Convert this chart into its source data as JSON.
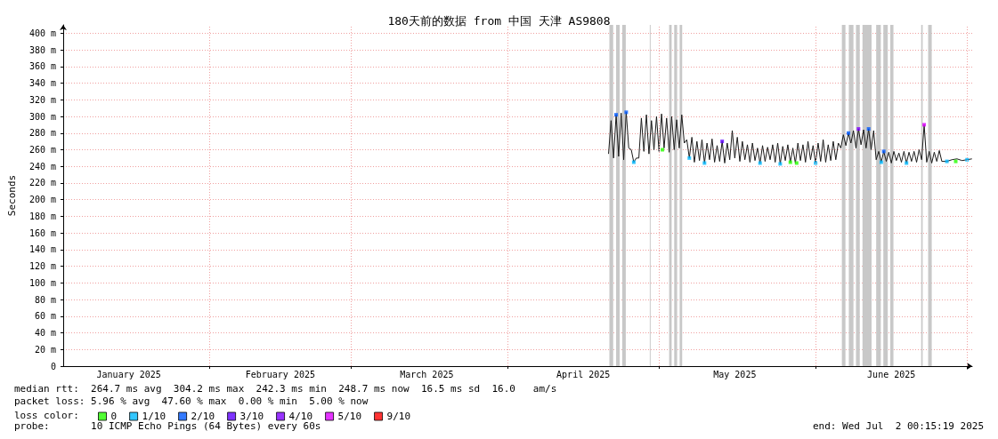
{
  "chart_data": {
    "type": "line",
    "title": "180天前的数据 from 中国 天津 AS9808",
    "ylabel": "Seconds",
    "xlim": [
      "2025-01-03T00:15",
      "2025-07-02T00:15"
    ],
    "xticks": [
      {
        "value": "2025-01-16",
        "label": "January 2025"
      },
      {
        "value": "2025-02-01",
        "label": null
      },
      {
        "value": "2025-02-15",
        "label": "February 2025"
      },
      {
        "value": "2025-03-01",
        "label": null
      },
      {
        "value": "2025-03-16",
        "label": "March 2025"
      },
      {
        "value": "2025-04-01",
        "label": null
      },
      {
        "value": "2025-04-16",
        "label": "April 2025"
      },
      {
        "value": "2025-05-01",
        "label": null
      },
      {
        "value": "2025-05-16",
        "label": "May 2025"
      },
      {
        "value": "2025-06-01",
        "label": null
      },
      {
        "value": "2025-06-16",
        "label": "June 2025"
      },
      {
        "value": "2025-07-01",
        "label": null
      }
    ],
    "ylim": [
      0,
      410
    ],
    "yticks": [
      0,
      {
        "value": 20,
        "label": "20 m"
      },
      {
        "value": 40,
        "label": "40 m"
      },
      {
        "value": 60,
        "label": "60 m"
      },
      {
        "value": 80,
        "label": "80 m"
      },
      {
        "value": 100,
        "label": "100 m"
      },
      {
        "value": 120,
        "label": "120 m"
      },
      {
        "value": 140,
        "label": "140 m"
      },
      {
        "value": 160,
        "label": "160 m"
      },
      {
        "value": 180,
        "label": "180 m"
      },
      {
        "value": 200,
        "label": "200 m"
      },
      {
        "value": 220,
        "label": "220 m"
      },
      {
        "value": 240,
        "label": "240 m"
      },
      {
        "value": 260,
        "label": "260 m"
      },
      {
        "value": 280,
        "label": "280 m"
      },
      {
        "value": 300,
        "label": "300 m"
      },
      {
        "value": 320,
        "label": "320 m"
      },
      {
        "value": 340,
        "label": "340 m"
      },
      {
        "value": 360,
        "label": "360 m"
      },
      {
        "value": 380,
        "label": "380 m"
      },
      {
        "value": 400,
        "label": "400 m"
      }
    ],
    "grid": true,
    "legend": "bottom left",
    "legend_title": "loss color:",
    "marker": "square",
    "series": [
      {
        "color": "#1a1a1a",
        "marker": "none",
        "x": [
          "2025-04-21T00:00",
          "2025-04-21T12:00",
          "2025-04-22T00:00",
          "2025-04-22T12:00",
          "2025-04-23T00:00",
          "2025-04-23T12:00",
          "2025-04-24T00:00",
          "2025-04-24T12:00",
          "2025-04-25T00:00",
          "2025-04-25T12:00",
          "2025-04-26T00:00",
          "2025-04-26T12:00",
          "2025-04-27T00:00",
          "2025-04-27T12:00",
          "2025-04-28T00:00",
          "2025-04-28T12:00",
          "2025-04-29T00:00",
          "2025-04-29T12:00",
          "2025-04-30T00:00",
          "2025-04-30T12:00",
          "2025-05-01T00:00",
          "2025-05-01T12:00",
          "2025-05-02T00:00",
          "2025-05-02T12:00",
          "2025-05-03T00:00",
          "2025-05-03T12:00",
          "2025-05-04T00:00",
          "2025-05-04T12:00",
          "2025-05-05T00:00",
          "2025-05-05T12:00",
          "2025-05-06T00:00",
          "2025-05-06T12:00",
          "2025-05-07T00:00",
          "2025-05-07T12:00",
          "2025-05-08T00:00",
          "2025-05-08T12:00",
          "2025-05-09T00:00",
          "2025-05-09T12:00",
          "2025-05-10T00:00",
          "2025-05-10T12:00",
          "2025-05-11T00:00",
          "2025-05-11T12:00",
          "2025-05-12T00:00",
          "2025-05-12T12:00",
          "2025-05-13T00:00",
          "2025-05-13T12:00",
          "2025-05-14T00:00",
          "2025-05-14T12:00",
          "2025-05-15T00:00",
          "2025-05-15T12:00",
          "2025-05-16T00:00",
          "2025-05-16T12:00",
          "2025-05-17T00:00",
          "2025-05-17T12:00",
          "2025-05-18T00:00",
          "2025-05-18T12:00",
          "2025-05-19T00:00",
          "2025-05-19T12:00",
          "2025-05-20T00:00",
          "2025-05-20T12:00",
          "2025-05-21T00:00",
          "2025-05-21T12:00",
          "2025-05-22T00:00",
          "2025-05-22T12:00",
          "2025-05-23T00:00",
          "2025-05-23T12:00",
          "2025-05-24T00:00",
          "2025-05-24T12:00",
          "2025-05-25T00:00",
          "2025-05-25T12:00",
          "2025-05-26T00:00",
          "2025-05-26T12:00",
          "2025-05-27T00:00",
          "2025-05-27T12:00",
          "2025-05-28T00:00",
          "2025-05-28T12:00",
          "2025-05-29T00:00",
          "2025-05-29T12:00",
          "2025-05-30T00:00",
          "2025-05-30T12:00",
          "2025-05-31T00:00",
          "2025-05-31T12:00",
          "2025-06-01T00:00",
          "2025-06-01T12:00",
          "2025-06-02T00:00",
          "2025-06-02T12:00",
          "2025-06-03T00:00",
          "2025-06-03T12:00",
          "2025-06-04T00:00",
          "2025-06-04T12:00",
          "2025-06-05T00:00",
          "2025-06-05T12:00",
          "2025-06-06T00:00",
          "2025-06-06T12:00",
          "2025-06-07T00:00",
          "2025-06-07T12:00",
          "2025-06-08T00:00",
          "2025-06-08T12:00",
          "2025-06-09T00:00",
          "2025-06-09T12:00",
          "2025-06-10T00:00",
          "2025-06-10T12:00",
          "2025-06-11T00:00",
          "2025-06-11T12:00",
          "2025-06-12T00:00",
          "2025-06-12T12:00",
          "2025-06-13T00:00",
          "2025-06-13T12:00",
          "2025-06-14T00:00",
          "2025-06-14T12:00",
          "2025-06-15T00:00",
          "2025-06-15T12:00",
          "2025-06-16T00:00",
          "2025-06-16T12:00",
          "2025-06-17T00:00",
          "2025-06-17T12:00",
          "2025-06-18T00:00",
          "2025-06-18T12:00",
          "2025-06-19T00:00",
          "2025-06-19T12:00",
          "2025-06-20T00:00",
          "2025-06-20T12:00",
          "2025-06-21T00:00",
          "2025-06-21T12:00",
          "2025-06-22T00:00",
          "2025-06-22T12:00",
          "2025-06-23T00:00",
          "2025-06-23T12:00",
          "2025-06-24T00:00",
          "2025-06-24T12:00",
          "2025-06-25T00:00",
          "2025-06-25T12:00",
          "2025-06-26T00:00",
          "2025-06-27T00:00",
          "2025-06-28T00:00",
          "2025-06-29T00:00",
          "2025-06-30T00:00",
          "2025-07-01T00:00",
          "2025-07-01T23:00"
        ],
        "values": [
          255,
          295,
          250,
          302,
          252,
          304,
          248,
          305,
          262,
          260,
          245,
          250,
          250,
          298,
          258,
          302,
          255,
          295,
          260,
          300,
          258,
          303,
          262,
          298,
          257,
          300,
          260,
          296,
          262,
          302,
          268,
          272,
          250,
          275,
          245,
          270,
          247,
          272,
          244,
          268,
          248,
          273,
          245,
          265,
          246,
          270,
          244,
          268,
          248,
          283,
          250,
          275,
          246,
          270,
          248,
          266,
          245,
          268,
          247,
          262,
          244,
          265,
          246,
          263,
          248,
          266,
          245,
          268,
          243,
          264,
          247,
          266,
          245,
          262,
          244,
          268,
          247,
          266,
          245,
          270,
          248,
          265,
          244,
          268,
          246,
          272,
          245,
          266,
          247,
          270,
          248,
          268,
          262,
          278,
          265,
          280,
          268,
          283,
          262,
          285,
          266,
          284,
          262,
          285,
          260,
          283,
          248,
          258,
          245,
          258,
          246,
          257,
          244,
          258,
          247,
          256,
          245,
          258,
          244,
          257,
          246,
          258,
          245,
          260,
          248,
          290,
          245,
          258,
          244,
          257,
          246,
          259,
          246,
          246,
          248,
          249,
          247,
          248,
          249
        ]
      },
      {
        "type": "scatter",
        "name": "0",
        "color": "#26ff00",
        "x": [
          "2025-05-01T16:00",
          "2025-05-27T00:00",
          "2025-05-28T06:00",
          "2025-06-28T18:00"
        ],
        "values": [
          260,
          245,
          244,
          246
        ]
      },
      {
        "type": "scatter",
        "name": "1/10",
        "color": "#00b8ff",
        "x": [
          "2025-04-26T00:00",
          "2025-05-07T00:00",
          "2025-05-10T00:00",
          "2025-05-21T00:00",
          "2025-05-25T00:00",
          "2025-06-01T00:00",
          "2025-06-14T00:00",
          "2025-06-19T00:00",
          "2025-06-27T00:00",
          "2025-07-01T00:00"
        ],
        "values": [
          245,
          250,
          244,
          244,
          243,
          244,
          245,
          244,
          246,
          248
        ]
      },
      {
        "type": "scatter",
        "name": "2/10",
        "color": "#0059ff",
        "x": [
          "2025-04-22T12:00",
          "2025-04-24T12:00",
          "2025-06-07T12:00",
          "2025-06-11T12:00",
          "2025-06-14T12:00"
        ],
        "values": [
          302,
          305,
          280,
          285,
          258
        ]
      },
      {
        "type": "scatter",
        "name": "3/10",
        "color": "#5e00ff",
        "x": [
          "2025-05-13T12:00"
        ],
        "values": [
          270
        ]
      },
      {
        "type": "scatter",
        "name": "4/10",
        "color": "#7e00ff",
        "x": [
          "2025-06-09T12:00"
        ],
        "values": [
          285
        ]
      },
      {
        "type": "scatter",
        "name": "5/10",
        "color": "#dd00ff",
        "x": [
          "2025-06-22T12:00"
        ],
        "values": [
          290
        ]
      },
      {
        "type": "scatter",
        "name": "9/10",
        "color": "#ff0000"
      }
    ],
    "bands": [
      {
        "axis": "x",
        "from": "2025-04-21T04:00",
        "to": "2025-04-21T22:00",
        "color": "#c8c8c8"
      },
      {
        "axis": "x",
        "from": "2025-04-22T12:00",
        "to": "2025-04-23T05:00",
        "color": "#c8c8c8"
      },
      {
        "axis": "x",
        "from": "2025-04-23T17:00",
        "to": "2025-04-24T10:00",
        "color": "#c8c8c8"
      },
      {
        "axis": "x",
        "from": "2025-04-29T04:00",
        "to": "2025-04-29T08:00",
        "color": "#c8c8c8"
      },
      {
        "axis": "x",
        "from": "2025-05-03T00:00",
        "to": "2025-05-03T12:00",
        "color": "#c8c8c8"
      },
      {
        "axis": "x",
        "from": "2025-05-04T00:00",
        "to": "2025-05-04T14:00",
        "color": "#c8c8c8"
      },
      {
        "axis": "x",
        "from": "2025-05-05T02:00",
        "to": "2025-05-05T14:00",
        "color": "#c8c8c8"
      },
      {
        "axis": "x",
        "from": "2025-06-06T05:00",
        "to": "2025-06-06T22:00",
        "color": "#c8c8c8"
      },
      {
        "axis": "x",
        "from": "2025-06-07T14:00",
        "to": "2025-06-08T12:00",
        "color": "#c8c8c8"
      },
      {
        "axis": "x",
        "from": "2025-06-09T00:00",
        "to": "2025-06-09T18:00",
        "color": "#c8c8c8"
      },
      {
        "axis": "x",
        "from": "2025-06-10T07:00",
        "to": "2025-06-12T02:00",
        "color": "#c8c8c8"
      },
      {
        "axis": "x",
        "from": "2025-06-13T00:00",
        "to": "2025-06-13T22:00",
        "color": "#c8c8c8"
      },
      {
        "axis": "x",
        "from": "2025-06-14T10:00",
        "to": "2025-06-15T07:00",
        "color": "#c8c8c8"
      },
      {
        "axis": "x",
        "from": "2025-06-15T19:00",
        "to": "2025-06-16T10:00",
        "color": "#c8c8c8"
      },
      {
        "axis": "x",
        "from": "2025-06-21T22:00",
        "to": "2025-06-22T05:00",
        "color": "#c8c8c8"
      },
      {
        "axis": "x",
        "from": "2025-06-23T07:00",
        "to": "2025-06-24T00:00",
        "color": "#c8c8c8"
      }
    ],
    "annotations": [
      "median rtt:  264.7 ms avg  304.2 ms max  242.3 ms min  248.7 ms now  16.5 ms sd  16.0   am/s",
      "packet loss: 5.96 % avg  47.60 % max  0.00 % min  5.00 % now",
      "probe:       10 ICMP Echo Pings (64 Bytes) every 60s",
      "end: Wed Jul  2 00:15:19 2025"
    ]
  }
}
